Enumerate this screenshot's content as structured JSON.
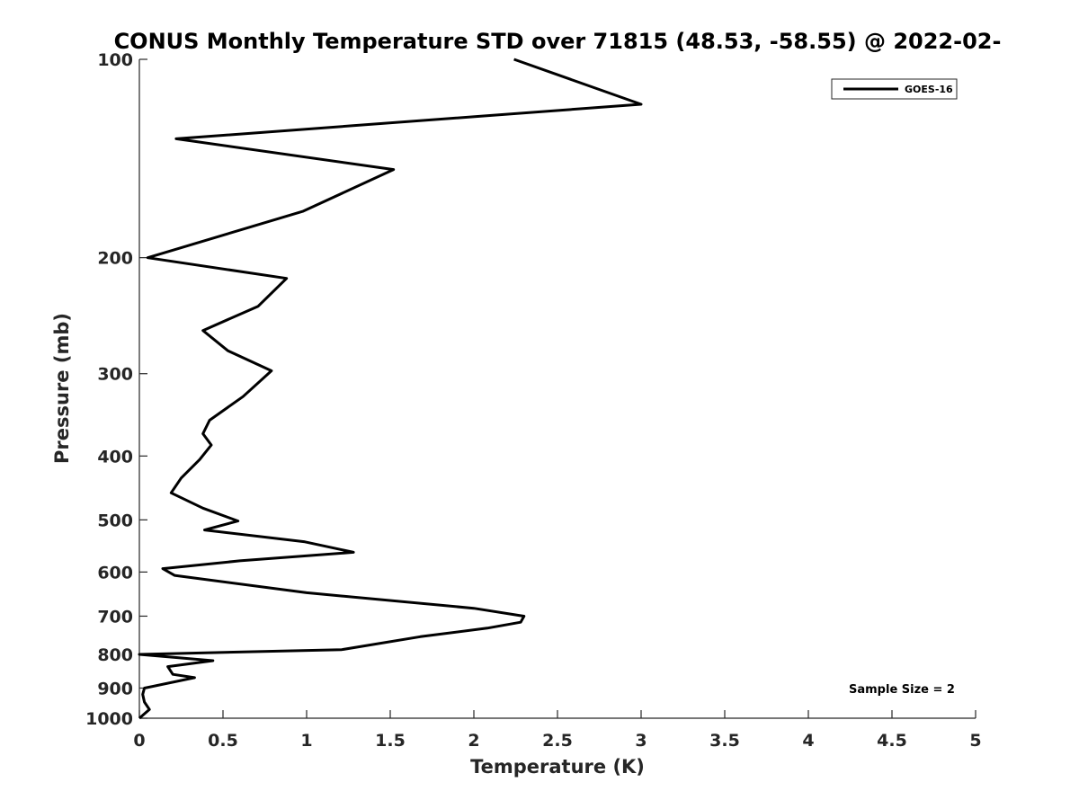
{
  "chart_data": {
    "type": "line",
    "title": "CONUS Monthly Temperature STD over 71815 (48.53, -58.55) @ 2022-02-",
    "xlabel": "Temperature (K)",
    "ylabel": "Pressure (mb)",
    "xlim": [
      0,
      5
    ],
    "ylim": [
      100,
      1000
    ],
    "yscale": "log",
    "y_reversed": true,
    "xticks": [
      0,
      0.5,
      1,
      1.5,
      2,
      2.5,
      3,
      3.5,
      4,
      4.5,
      5
    ],
    "xtick_labels": [
      "0",
      "0.5",
      "1",
      "1.5",
      "2",
      "2.5",
      "3",
      "3.5",
      "4",
      "4.5",
      "5"
    ],
    "yticks": [
      100,
      200,
      300,
      400,
      500,
      600,
      700,
      800,
      900,
      1000
    ],
    "ytick_labels": [
      "100",
      "200",
      "300",
      "400",
      "500",
      "600",
      "700",
      "800",
      "900",
      "1000"
    ],
    "grid": false,
    "legend_position": "top-right",
    "series_color": "#000000",
    "series": [
      {
        "name": "GOES-16",
        "x": [
          2.24,
          3.0,
          0.22,
          1.52,
          0.98,
          0.05,
          0.88,
          0.71,
          0.38,
          0.53,
          0.79,
          0.62,
          0.42,
          0.38,
          0.43,
          0.36,
          0.25,
          0.19,
          0.38,
          0.59,
          0.39,
          0.99,
          1.28,
          0.6,
          0.14,
          0.21,
          1.0,
          2.0,
          2.3,
          2.28,
          2.08,
          1.68,
          1.21,
          0.0,
          0.44,
          0.17,
          0.2,
          0.33,
          0.03,
          0.02,
          0.03,
          0.06,
          0.0
        ],
        "y": [
          100,
          117,
          132,
          147,
          170,
          200,
          215,
          237,
          258,
          277,
          297,
          325,
          353,
          370,
          385,
          405,
          432,
          455,
          480,
          502,
          518,
          540,
          560,
          577,
          593,
          607,
          645,
          681,
          700,
          715,
          730,
          752,
          787,
          800,
          818,
          835,
          858,
          868,
          900,
          920,
          945,
          970,
          1000
        ]
      }
    ],
    "annotations": [
      "Sample Size = 2"
    ]
  }
}
